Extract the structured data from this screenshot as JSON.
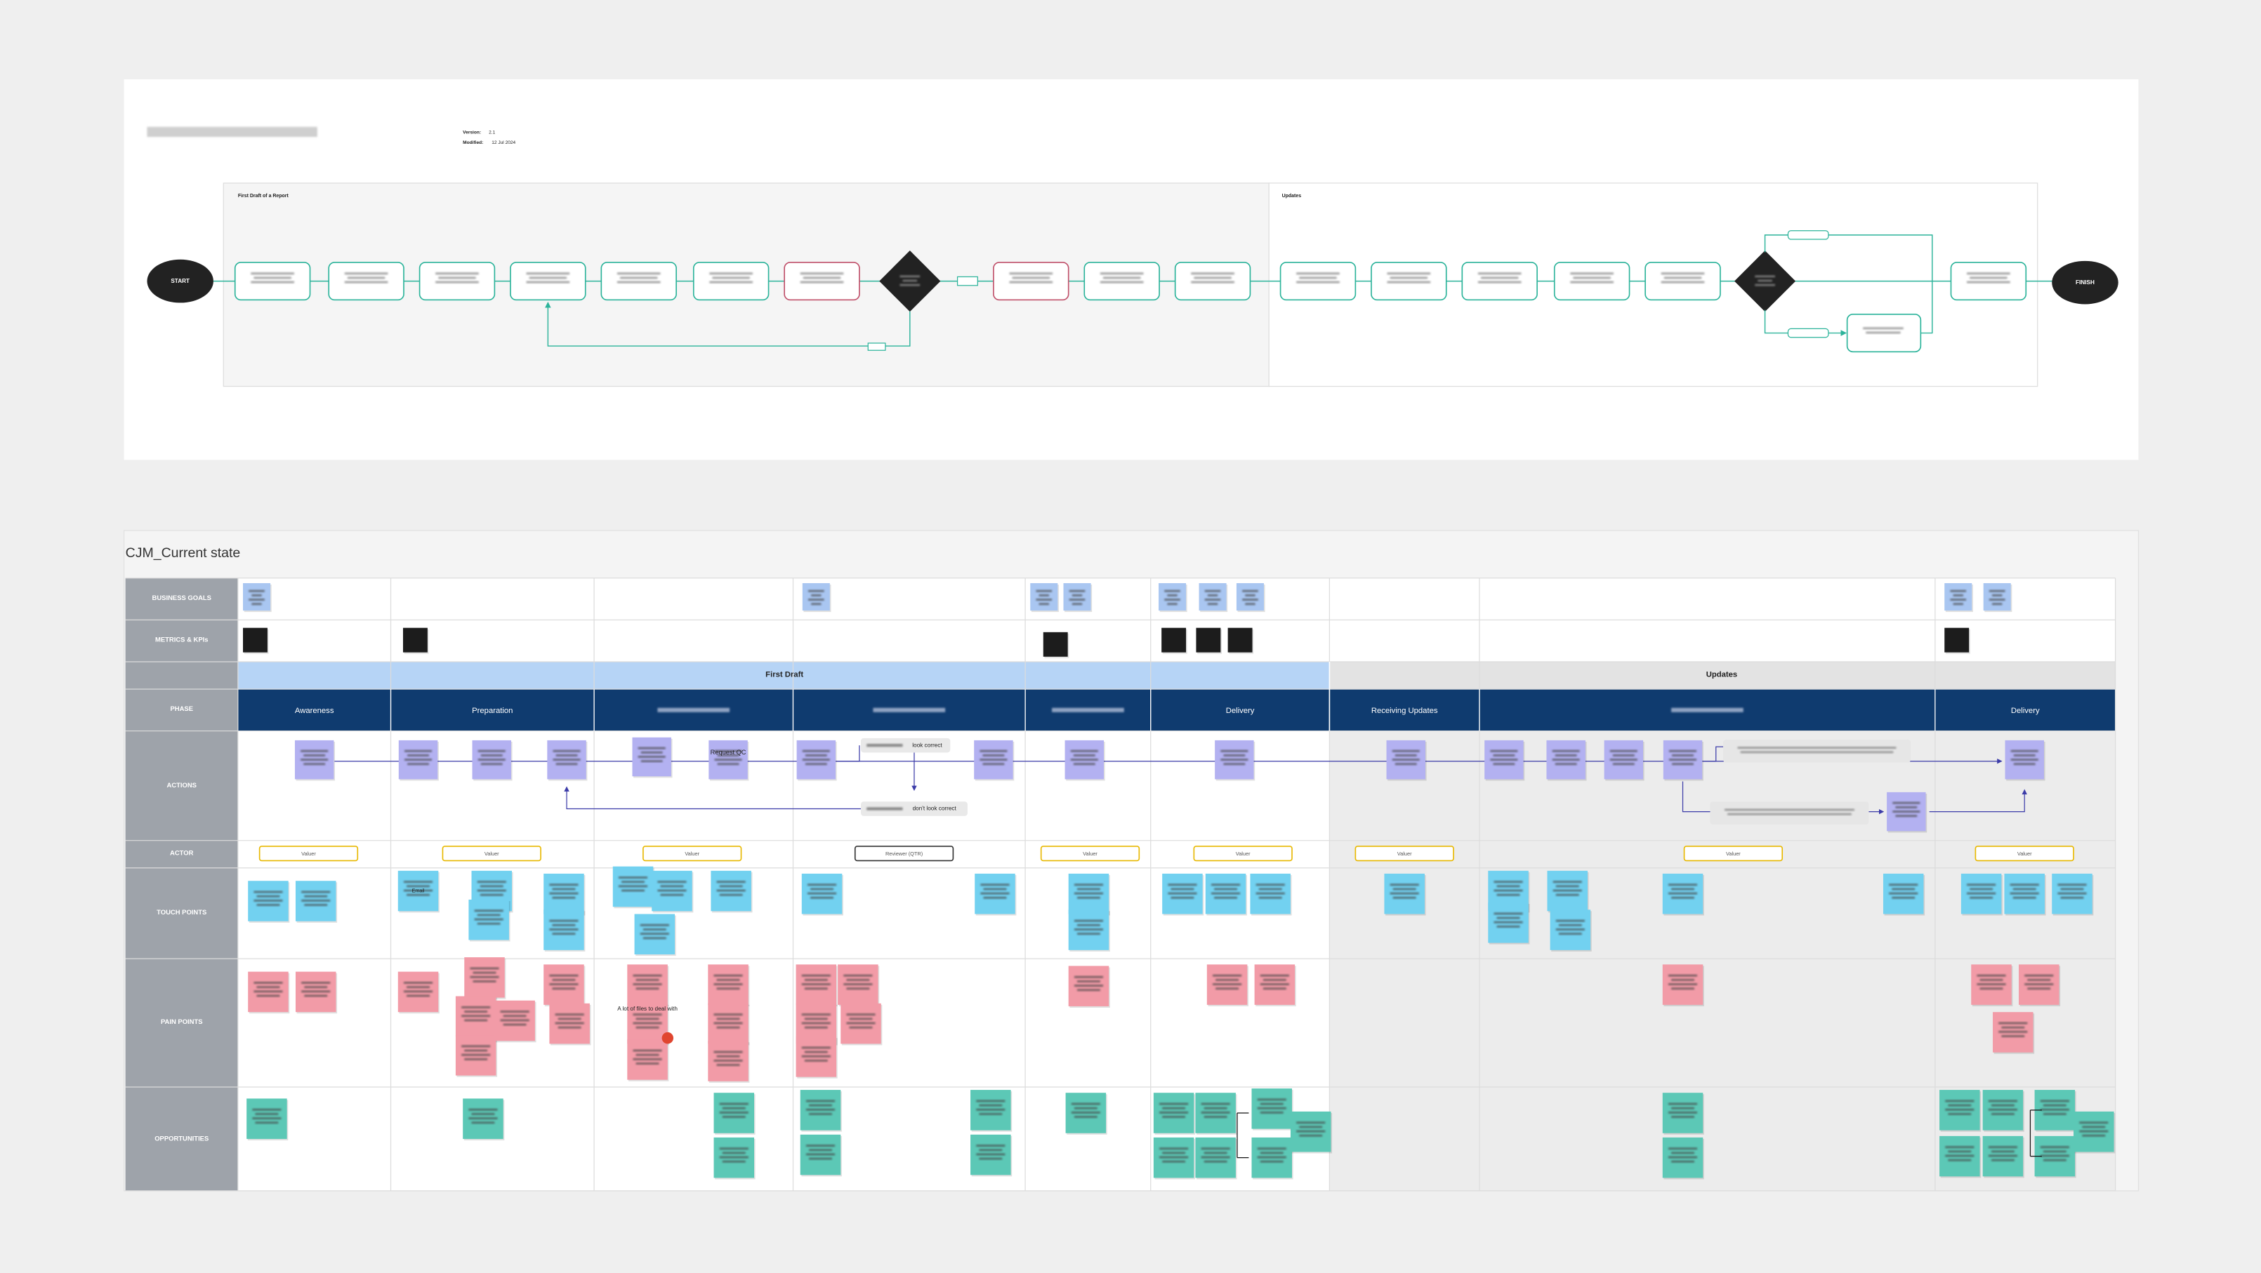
{
  "flow": {
    "version_label": "Version:",
    "version": "2.1",
    "modified_label": "Modified:",
    "modified": "12 Jul 2024",
    "start": "START",
    "finish": "FINISH",
    "regions": [
      "First Draft of a Report",
      "Updates"
    ]
  },
  "cjm": {
    "title": "CJM_Current state",
    "rows": [
      "BUSINESS GOALS",
      "METRICS & KPIs",
      "PHASE",
      "ACTIONS",
      "ACTOR",
      "TOUCH POINTS",
      "PAIN POINTS",
      "OPPORTUNITIES"
    ],
    "stages": [
      "First Draft",
      "Updates"
    ],
    "phases": [
      "Awareness",
      "Preparation",
      "Delivery",
      "Receiving Updates",
      "Delivery"
    ],
    "decisions": [
      "look correct",
      "don't look correct"
    ],
    "actors": [
      "Valuer",
      "Valuer",
      "Valuer",
      "Reviewer (QTR)",
      "Valuer",
      "Valuer",
      "Valuer",
      "Valuer",
      "Valuer"
    ],
    "notes": [
      "Request QC",
      "A lot of files to deal with",
      "Email"
    ]
  }
}
